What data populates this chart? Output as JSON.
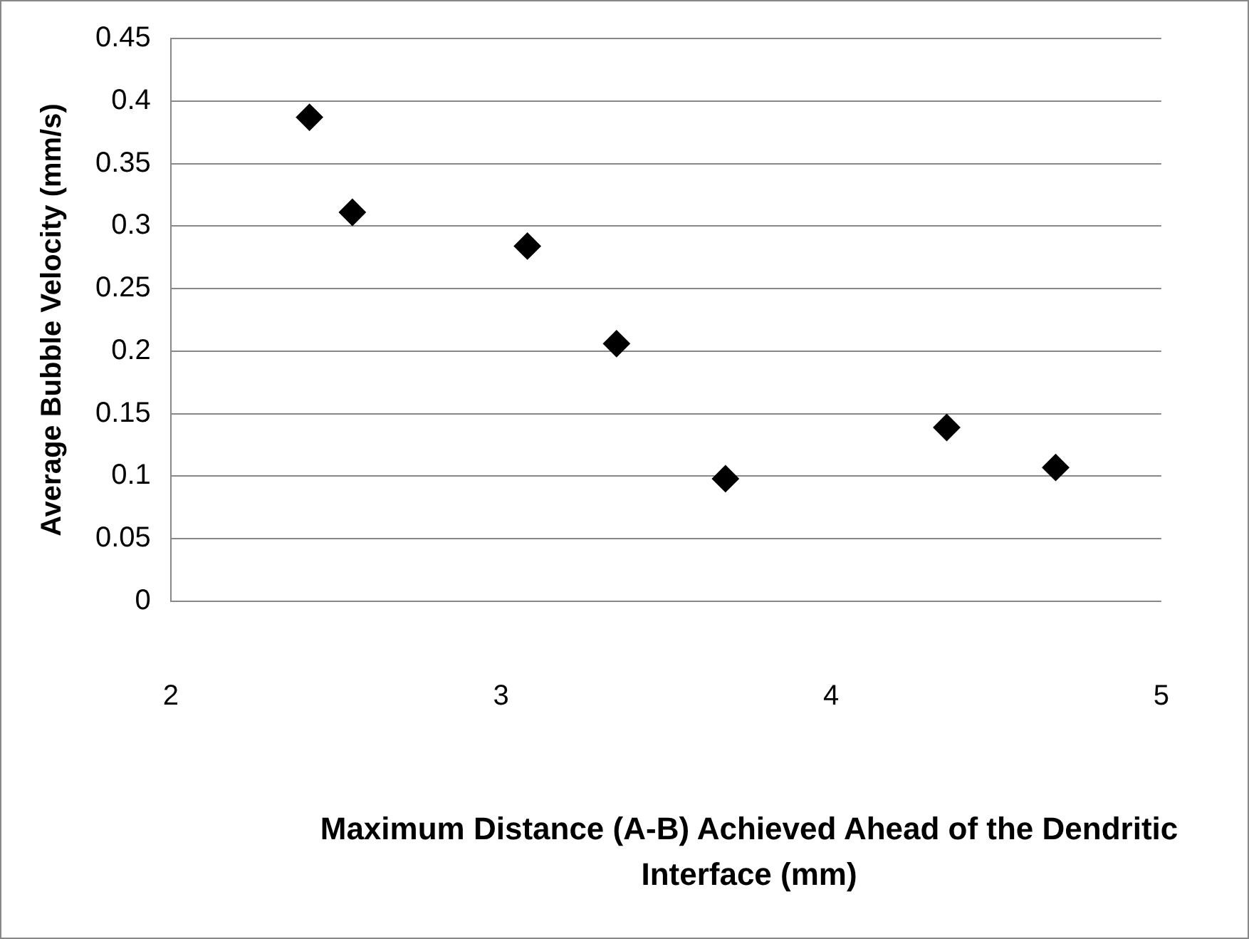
{
  "chart_data": {
    "type": "scatter",
    "xlabel": "Maximum Distance (A-B) Achieved Ahead of the Dendritic Interface  (mm)",
    "ylabel": "Average Bubble Velocity (mm/s)",
    "x": [
      2.42,
      2.55,
      3.08,
      3.35,
      3.68,
      4.35,
      4.68
    ],
    "series": [
      {
        "color": "#000000",
        "values": [
          0.387,
          0.311,
          0.284,
          0.206,
          0.098,
          0.139,
          0.107
        ]
      }
    ],
    "xlim": [
      2,
      5
    ],
    "xticks": [
      2,
      3,
      4,
      5
    ],
    "ylim": [
      0,
      0.45
    ],
    "yticks": [
      0,
      0.05,
      0.1,
      0.15,
      0.2,
      0.25,
      0.3,
      0.35,
      0.4,
      0.45
    ],
    "grid": "y",
    "marker": "diamond",
    "legend": false
  }
}
